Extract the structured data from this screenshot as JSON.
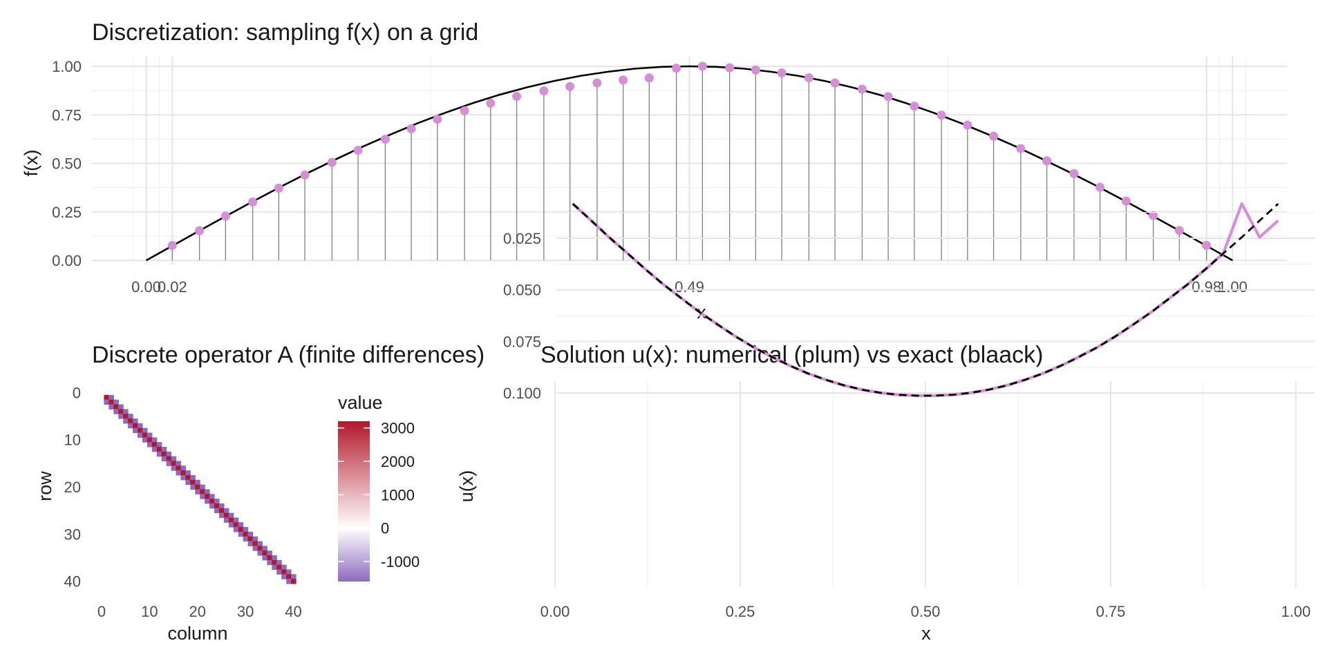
{
  "chart_data": [
    {
      "type": "scatter",
      "title": "Discretization: sampling f(x) on a grid",
      "xlabel": "x",
      "ylabel": "f(x)",
      "xlim": [
        -0.05,
        1.05
      ],
      "ylim": [
        0,
        1
      ],
      "x_tick_labels": [
        "0.00",
        "0.02",
        "0.49",
        "0.98",
        "1.00"
      ],
      "x_tick_values": [
        0.0,
        0.024,
        0.5,
        0.976,
        1.0
      ],
      "y_tick_labels": [
        "0.00",
        "0.25",
        "0.50",
        "0.75",
        "1.00"
      ],
      "y_tick_values": [
        0,
        0.25,
        0.5,
        0.75,
        1.0
      ],
      "grid": true,
      "series": [
        {
          "kind": "curve",
          "color": "#000000",
          "x": [
            0.0,
            0.025,
            0.05,
            0.075,
            0.1,
            0.125,
            0.15,
            0.175,
            0.2,
            0.225,
            0.25,
            0.275,
            0.3,
            0.325,
            0.35,
            0.375,
            0.4,
            0.425,
            0.45,
            0.475,
            0.5,
            0.525,
            0.55,
            0.575,
            0.6,
            0.625,
            0.65,
            0.675,
            0.7,
            0.725,
            0.75,
            0.775,
            0.8,
            0.825,
            0.85,
            0.875,
            0.9,
            0.925,
            0.95,
            0.975,
            1.0
          ],
          "y": [
            0.0,
            0.078,
            0.156,
            0.233,
            0.309,
            0.383,
            0.454,
            0.522,
            0.588,
            0.649,
            0.707,
            0.76,
            0.809,
            0.853,
            0.891,
            0.924,
            0.951,
            0.972,
            0.988,
            0.997,
            1.0,
            0.997,
            0.988,
            0.972,
            0.951,
            0.924,
            0.891,
            0.853,
            0.809,
            0.76,
            0.707,
            0.649,
            0.588,
            0.522,
            0.454,
            0.383,
            0.309,
            0.233,
            0.156,
            0.078,
            0.0
          ]
        },
        {
          "kind": "samples",
          "color": "#d58fd6",
          "stem_color": "#7f7f7f",
          "x": [
            0.024,
            0.049,
            0.073,
            0.098,
            0.122,
            0.146,
            0.171,
            0.195,
            0.22,
            0.244,
            0.268,
            0.293,
            0.317,
            0.341,
            0.366,
            0.39,
            0.415,
            0.439,
            0.463,
            0.488,
            0.512,
            0.537,
            0.561,
            0.585,
            0.61,
            0.634,
            0.659,
            0.683,
            0.707,
            0.732,
            0.756,
            0.78,
            0.805,
            0.829,
            0.854,
            0.878,
            0.902,
            0.927,
            0.951,
            0.976
          ],
          "y": [
            0.077,
            0.153,
            0.228,
            0.301,
            0.372,
            0.44,
            0.505,
            0.567,
            0.624,
            0.678,
            0.727,
            0.771,
            0.81,
            0.845,
            0.873,
            0.896,
            0.914,
            0.929,
            0.94,
            0.99,
            1.0,
            0.993,
            0.981,
            0.966,
            0.941,
            0.914,
            0.882,
            0.844,
            0.795,
            0.748,
            0.697,
            0.64,
            0.576,
            0.513,
            0.447,
            0.377,
            0.305,
            0.231,
            0.154,
            0.077
          ]
        }
      ]
    },
    {
      "type": "heatmap",
      "title": "Discrete operator A (finite differences)",
      "xlabel": "column",
      "ylabel": "row",
      "n": 40,
      "diag_value": 3200,
      "offdiag_value": -1600,
      "x_tick_labels": [
        "0",
        "10",
        "20",
        "30",
        "40"
      ],
      "y_tick_labels": [
        "0",
        "10",
        "20",
        "30",
        "40"
      ],
      "legend": {
        "title": "value",
        "labels": [
          "3000",
          "2000",
          "1000",
          "0",
          "-1000"
        ],
        "values": [
          3000,
          2000,
          1000,
          0,
          -1000
        ],
        "min": -1600,
        "max": 3200,
        "colors": {
          "low": "#8c6bbf",
          "mid": "#ffffff",
          "high": "#b2182b"
        }
      }
    },
    {
      "type": "line",
      "title": "Solution u(x): numerical (plum) vs exact (blaack)",
      "xlabel": "x",
      "ylabel": "u(x)",
      "xlim": [
        0.0,
        1.0
      ],
      "ylim": [
        0.0,
        0.1
      ],
      "x_tick_labels": [
        "0.00",
        "0.25",
        "0.50",
        "0.75",
        "1.00"
      ],
      "x_tick_values": [
        0.0,
        0.25,
        0.5,
        0.75,
        1.0
      ],
      "y_tick_labels": [
        "0.025",
        "0.050",
        "0.075",
        "0.100"
      ],
      "y_tick_values": [
        0.025,
        0.05,
        0.075,
        0.1
      ],
      "grid": true,
      "series": [
        {
          "kind": "numerical",
          "color": "#d58fd6",
          "x": [
            0.024,
            0.049,
            0.073,
            0.098,
            0.122,
            0.146,
            0.171,
            0.195,
            0.22,
            0.244,
            0.268,
            0.293,
            0.317,
            0.341,
            0.366,
            0.39,
            0.415,
            0.439,
            0.463,
            0.488,
            0.512,
            0.537,
            0.561,
            0.585,
            0.61,
            0.634,
            0.659,
            0.683,
            0.707,
            0.732,
            0.756,
            0.78,
            0.805,
            0.829,
            0.854,
            0.878,
            0.902,
            0.927,
            0.951,
            0.976
          ],
          "y": [
            0.0078,
            0.0155,
            0.0231,
            0.0305,
            0.0377,
            0.0446,
            0.0511,
            0.0573,
            0.0631,
            0.0685,
            0.0734,
            0.0778,
            0.0818,
            0.0853,
            0.0883,
            0.0908,
            0.0928,
            0.0942,
            0.0951,
            0.0955,
            0.0955,
            0.0951,
            0.0942,
            0.0928,
            0.0908,
            0.0883,
            0.0853,
            0.0818,
            0.0778,
            0.0734,
            0.0685,
            0.0631,
            0.0573,
            0.0511,
            0.0446,
            0.0377,
            0.0305,
            0.0078,
            0.0231,
            0.0155
          ]
        },
        {
          "kind": "exact",
          "color": "#000000",
          "dashed": true,
          "x": [
            0.024,
            0.049,
            0.073,
            0.098,
            0.122,
            0.146,
            0.171,
            0.195,
            0.22,
            0.244,
            0.268,
            0.293,
            0.317,
            0.341,
            0.366,
            0.39,
            0.415,
            0.439,
            0.463,
            0.488,
            0.512,
            0.537,
            0.561,
            0.585,
            0.61,
            0.634,
            0.659,
            0.683,
            0.707,
            0.732,
            0.756,
            0.78,
            0.805,
            0.829,
            0.854,
            0.878,
            0.902,
            0.927,
            0.951,
            0.976
          ],
          "y": [
            0.0078,
            0.0155,
            0.0231,
            0.0305,
            0.0377,
            0.0446,
            0.0511,
            0.0573,
            0.0631,
            0.0685,
            0.0734,
            0.0778,
            0.0818,
            0.0853,
            0.0883,
            0.0908,
            0.0928,
            0.0942,
            0.0951,
            0.0955,
            0.0955,
            0.0951,
            0.0942,
            0.0928,
            0.0908,
            0.0883,
            0.0853,
            0.0818,
            0.0778,
            0.0734,
            0.0685,
            0.0631,
            0.0573,
            0.0511,
            0.0446,
            0.0377,
            0.0305,
            0.0231,
            0.0155,
            0.0078
          ]
        }
      ]
    }
  ]
}
